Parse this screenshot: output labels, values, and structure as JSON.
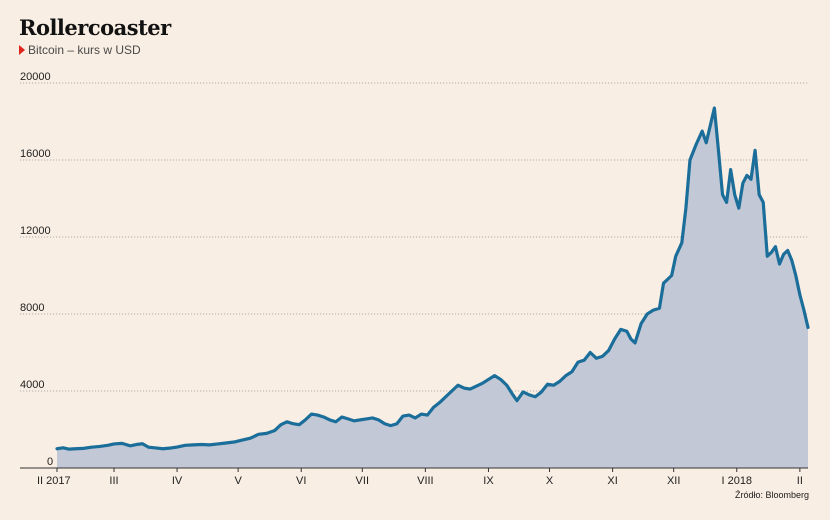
{
  "chart_data": {
    "type": "area",
    "title": "Rollercoaster",
    "subtitle": "Bitcoin – kurs w USD",
    "source": "Źródło: Bloomberg",
    "xlabel": "",
    "ylabel": "",
    "ylim": [
      0,
      20000
    ],
    "yticks": [
      0,
      4000,
      8000,
      12000,
      16000,
      20000
    ],
    "xlim": [
      "2017-02-01",
      "2018-02-05"
    ],
    "grid": true,
    "x_ticks": [
      {
        "label": "II 2017",
        "date": "2017-02-01"
      },
      {
        "label": "III",
        "date": "2017-03-01"
      },
      {
        "label": "IV",
        "date": "2017-04-01"
      },
      {
        "label": "V",
        "date": "2017-05-01"
      },
      {
        "label": "VI",
        "date": "2017-06-01"
      },
      {
        "label": "VII",
        "date": "2017-07-01"
      },
      {
        "label": "VIII",
        "date": "2017-08-01"
      },
      {
        "label": "IX",
        "date": "2017-09-01"
      },
      {
        "label": "X",
        "date": "2017-10-01"
      },
      {
        "label": "XI",
        "date": "2017-11-01"
      },
      {
        "label": "XII",
        "date": "2017-12-01"
      },
      {
        "label": "I 2018",
        "date": "2018-01-01"
      },
      {
        "label": "II",
        "date": "2018-02-01"
      }
    ],
    "line_color": "#1b6e9a",
    "fill_color": "#c2c8d6",
    "series": [
      {
        "x": [
          "2017-02-01",
          "2017-02-04",
          "2017-02-07",
          "2017-02-10",
          "2017-02-14",
          "2017-02-18",
          "2017-02-22",
          "2017-02-26",
          "2017-03-01",
          "2017-03-05",
          "2017-03-09",
          "2017-03-12",
          "2017-03-15",
          "2017-03-18",
          "2017-03-21",
          "2017-03-25",
          "2017-03-29",
          "2017-04-01",
          "2017-04-05",
          "2017-04-09",
          "2017-04-13",
          "2017-04-17",
          "2017-04-21",
          "2017-04-25",
          "2017-04-29",
          "2017-05-03",
          "2017-05-07",
          "2017-05-11",
          "2017-05-15",
          "2017-05-19",
          "2017-05-22",
          "2017-05-25",
          "2017-05-28",
          "2017-05-31",
          "2017-06-03",
          "2017-06-06",
          "2017-06-09",
          "2017-06-12",
          "2017-06-15",
          "2017-06-18",
          "2017-06-21",
          "2017-06-24",
          "2017-06-27",
          "2017-06-30",
          "2017-07-03",
          "2017-07-06",
          "2017-07-09",
          "2017-07-12",
          "2017-07-15",
          "2017-07-18",
          "2017-07-21",
          "2017-07-24",
          "2017-07-27",
          "2017-07-30",
          "2017-08-02",
          "2017-08-05",
          "2017-08-08",
          "2017-08-11",
          "2017-08-14",
          "2017-08-17",
          "2017-08-20",
          "2017-08-23",
          "2017-08-26",
          "2017-08-29",
          "2017-09-01",
          "2017-09-04",
          "2017-09-07",
          "2017-09-10",
          "2017-09-13",
          "2017-09-15",
          "2017-09-18",
          "2017-09-21",
          "2017-09-24",
          "2017-09-27",
          "2017-09-30",
          "2017-10-03",
          "2017-10-06",
          "2017-10-09",
          "2017-10-12",
          "2017-10-15",
          "2017-10-18",
          "2017-10-21",
          "2017-10-24",
          "2017-10-27",
          "2017-10-30",
          "2017-11-02",
          "2017-11-05",
          "2017-11-08",
          "2017-11-10",
          "2017-11-12",
          "2017-11-15",
          "2017-11-18",
          "2017-11-21",
          "2017-11-24",
          "2017-11-26",
          "2017-11-28",
          "2017-11-30",
          "2017-12-02",
          "2017-12-05",
          "2017-12-07",
          "2017-12-09",
          "2017-12-12",
          "2017-12-15",
          "2017-12-17",
          "2017-12-19",
          "2017-12-21",
          "2017-12-23",
          "2017-12-25",
          "2017-12-27",
          "2017-12-29",
          "2017-12-31",
          "2018-01-02",
          "2018-01-04",
          "2018-01-06",
          "2018-01-08",
          "2018-01-10",
          "2018-01-12",
          "2018-01-14",
          "2018-01-16",
          "2018-01-18",
          "2018-01-20",
          "2018-01-22",
          "2018-01-24",
          "2018-01-26",
          "2018-01-28",
          "2018-01-30",
          "2018-02-01",
          "2018-02-03",
          "2018-02-05"
        ],
        "y": [
          1000,
          1050,
          980,
          1000,
          1020,
          1080,
          1120,
          1180,
          1250,
          1280,
          1150,
          1220,
          1260,
          1080,
          1050,
          1000,
          1040,
          1090,
          1180,
          1200,
          1220,
          1200,
          1250,
          1300,
          1350,
          1450,
          1550,
          1750,
          1800,
          1950,
          2250,
          2400,
          2300,
          2250,
          2500,
          2800,
          2750,
          2650,
          2500,
          2400,
          2650,
          2550,
          2450,
          2500,
          2550,
          2600,
          2500,
          2300,
          2200,
          2300,
          2700,
          2750,
          2600,
          2800,
          2750,
          3150,
          3400,
          3700,
          4000,
          4300,
          4150,
          4100,
          4250,
          4400,
          4600,
          4800,
          4600,
          4300,
          3800,
          3500,
          3950,
          3800,
          3700,
          3950,
          4350,
          4300,
          4500,
          4800,
          5000,
          5500,
          5600,
          6000,
          5700,
          5800,
          6100,
          6700,
          7200,
          7100,
          6700,
          6500,
          7500,
          8000,
          8200,
          8300,
          9600,
          9800,
          10000,
          11000,
          11700,
          13500,
          16000,
          16800,
          17500,
          16900,
          17800,
          18700,
          16500,
          14200,
          13800,
          15500,
          14200,
          13500,
          14800,
          15200,
          15000,
          16500,
          14200,
          13800,
          11000,
          11200,
          11500,
          10600,
          11100,
          11300,
          10800,
          10000,
          9000,
          8200,
          7300
        ]
      }
    ]
  }
}
